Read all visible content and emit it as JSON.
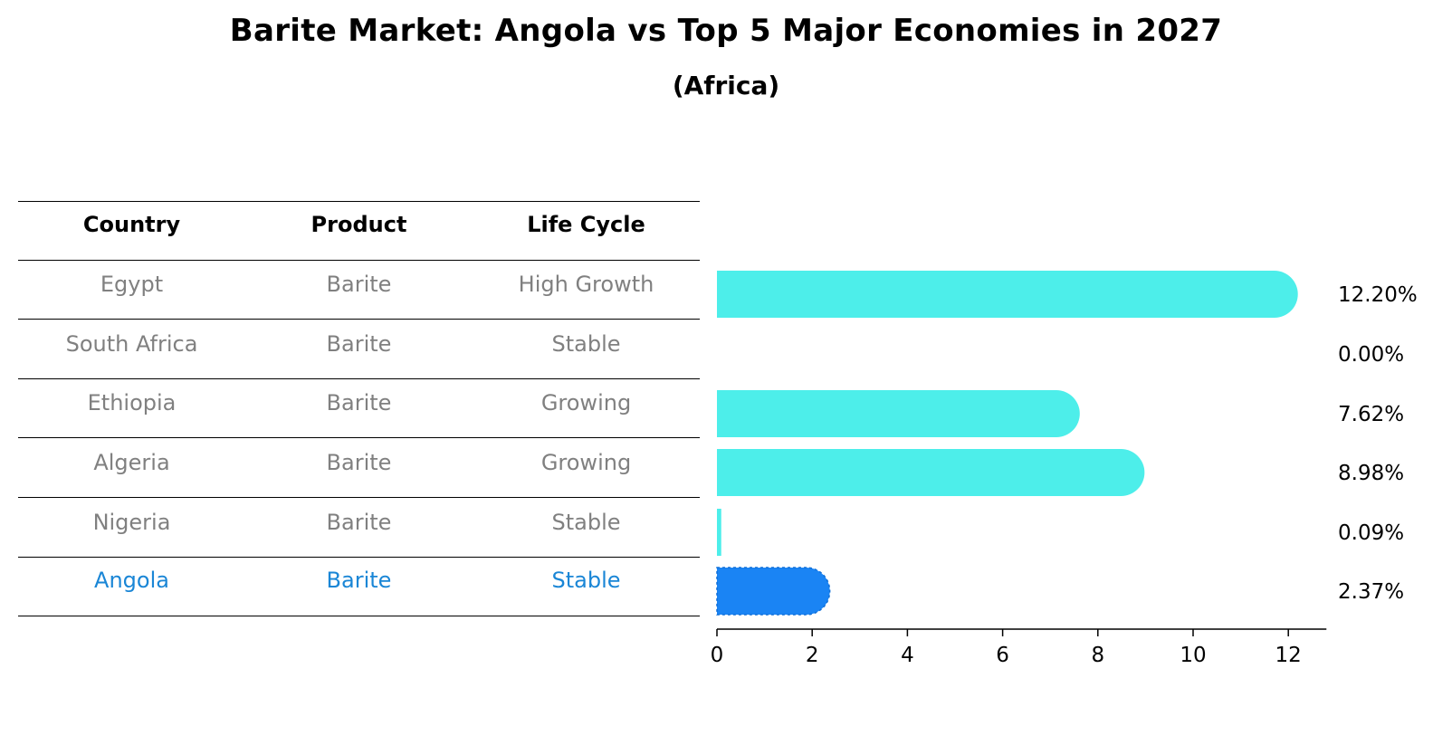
{
  "title": "Barite Market: Angola vs Top 5 Major Economies in 2027",
  "subtitle": "(Africa)",
  "table": {
    "headers": [
      "Country",
      "Product",
      "Life Cycle"
    ],
    "rows": [
      {
        "country": "Egypt",
        "product": "Barite",
        "life_cycle": "High Growth"
      },
      {
        "country": "South Africa",
        "product": "Barite",
        "life_cycle": "Stable"
      },
      {
        "country": "Ethiopia",
        "product": "Barite",
        "life_cycle": "Growing"
      },
      {
        "country": "Algeria",
        "product": "Barite",
        "life_cycle": "Growing"
      },
      {
        "country": "Nigeria",
        "product": "Barite",
        "life_cycle": "Stable"
      },
      {
        "country": "Angola",
        "product": "Barite",
        "life_cycle": "Stable"
      }
    ],
    "highlight_color": "#1a86d6",
    "text_color": "#808080"
  },
  "chart_data": {
    "type": "bar",
    "orientation": "horizontal",
    "categories": [
      "Egypt",
      "South Africa",
      "Ethiopia",
      "Algeria",
      "Nigeria",
      "Angola"
    ],
    "values": [
      12.2,
      0.0,
      7.62,
      8.98,
      0.09,
      2.37
    ],
    "value_labels": [
      "12.20%",
      "0.00%",
      "7.62%",
      "8.98%",
      "0.09%",
      "2.37%"
    ],
    "xlim": [
      0,
      12.8
    ],
    "xticks": [
      0,
      2,
      4,
      6,
      8,
      10,
      12
    ],
    "highlight": "Angola",
    "colors": {
      "default": "#4deeea",
      "highlight": "#1a84f4"
    },
    "grid": false
  }
}
